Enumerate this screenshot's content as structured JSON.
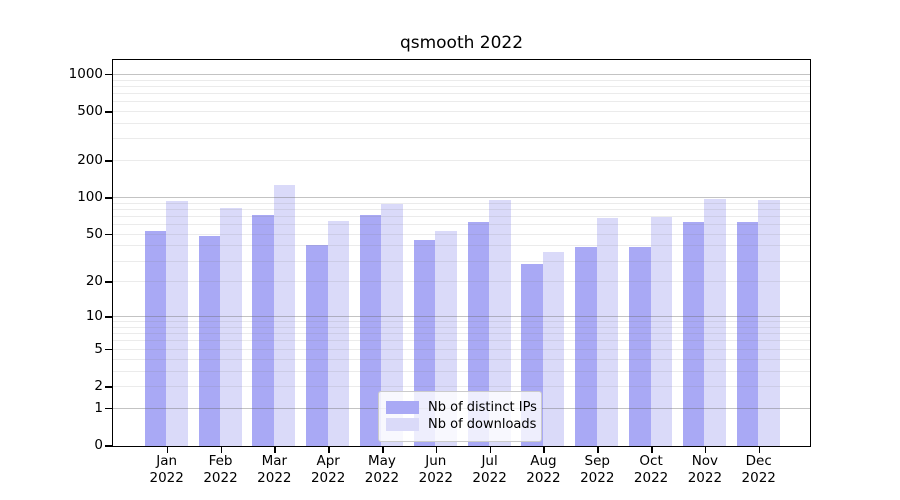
{
  "title": "qsmooth 2022",
  "legend": {
    "items": [
      {
        "label": "Nb of distinct IPs",
        "color": "#a9a9f5"
      },
      {
        "label": "Nb of downloads",
        "color": "#dadaf9"
      }
    ]
  },
  "chart_data": {
    "type": "bar",
    "title": "qsmooth 2022",
    "categories": [
      "Jan 2022",
      "Feb 2022",
      "Mar 2022",
      "Apr 2022",
      "May 2022",
      "Jun 2022",
      "Jul 2022",
      "Aug 2022",
      "Sep 2022",
      "Oct 2022",
      "Nov 2022",
      "Dec 2022"
    ],
    "series": [
      {
        "name": "Nb of distinct IPs",
        "color": "#a9a9f5",
        "values": [
          53,
          48,
          72,
          40,
          71,
          44,
          63,
          28,
          39,
          39,
          63,
          62
        ]
      },
      {
        "name": "Nb of downloads",
        "color": "#dadaf9",
        "values": [
          93,
          82,
          125,
          64,
          88,
          53,
          95,
          35,
          67,
          69,
          97,
          95
        ]
      }
    ],
    "yscale": "log1p",
    "ylim": [
      0,
      1300
    ],
    "y_ticks": [
      1000,
      500,
      200,
      100,
      50,
      20,
      10,
      5,
      2,
      1,
      0
    ],
    "y_major_gridlines": [
      1,
      10,
      100,
      1000
    ],
    "y_minor_gridlines": [
      2,
      3,
      4,
      5,
      6,
      7,
      8,
      9,
      20,
      30,
      40,
      50,
      60,
      70,
      80,
      90,
      200,
      300,
      400,
      500,
      600,
      700,
      800,
      900
    ],
    "grid": true,
    "legend_position": "lower center"
  }
}
